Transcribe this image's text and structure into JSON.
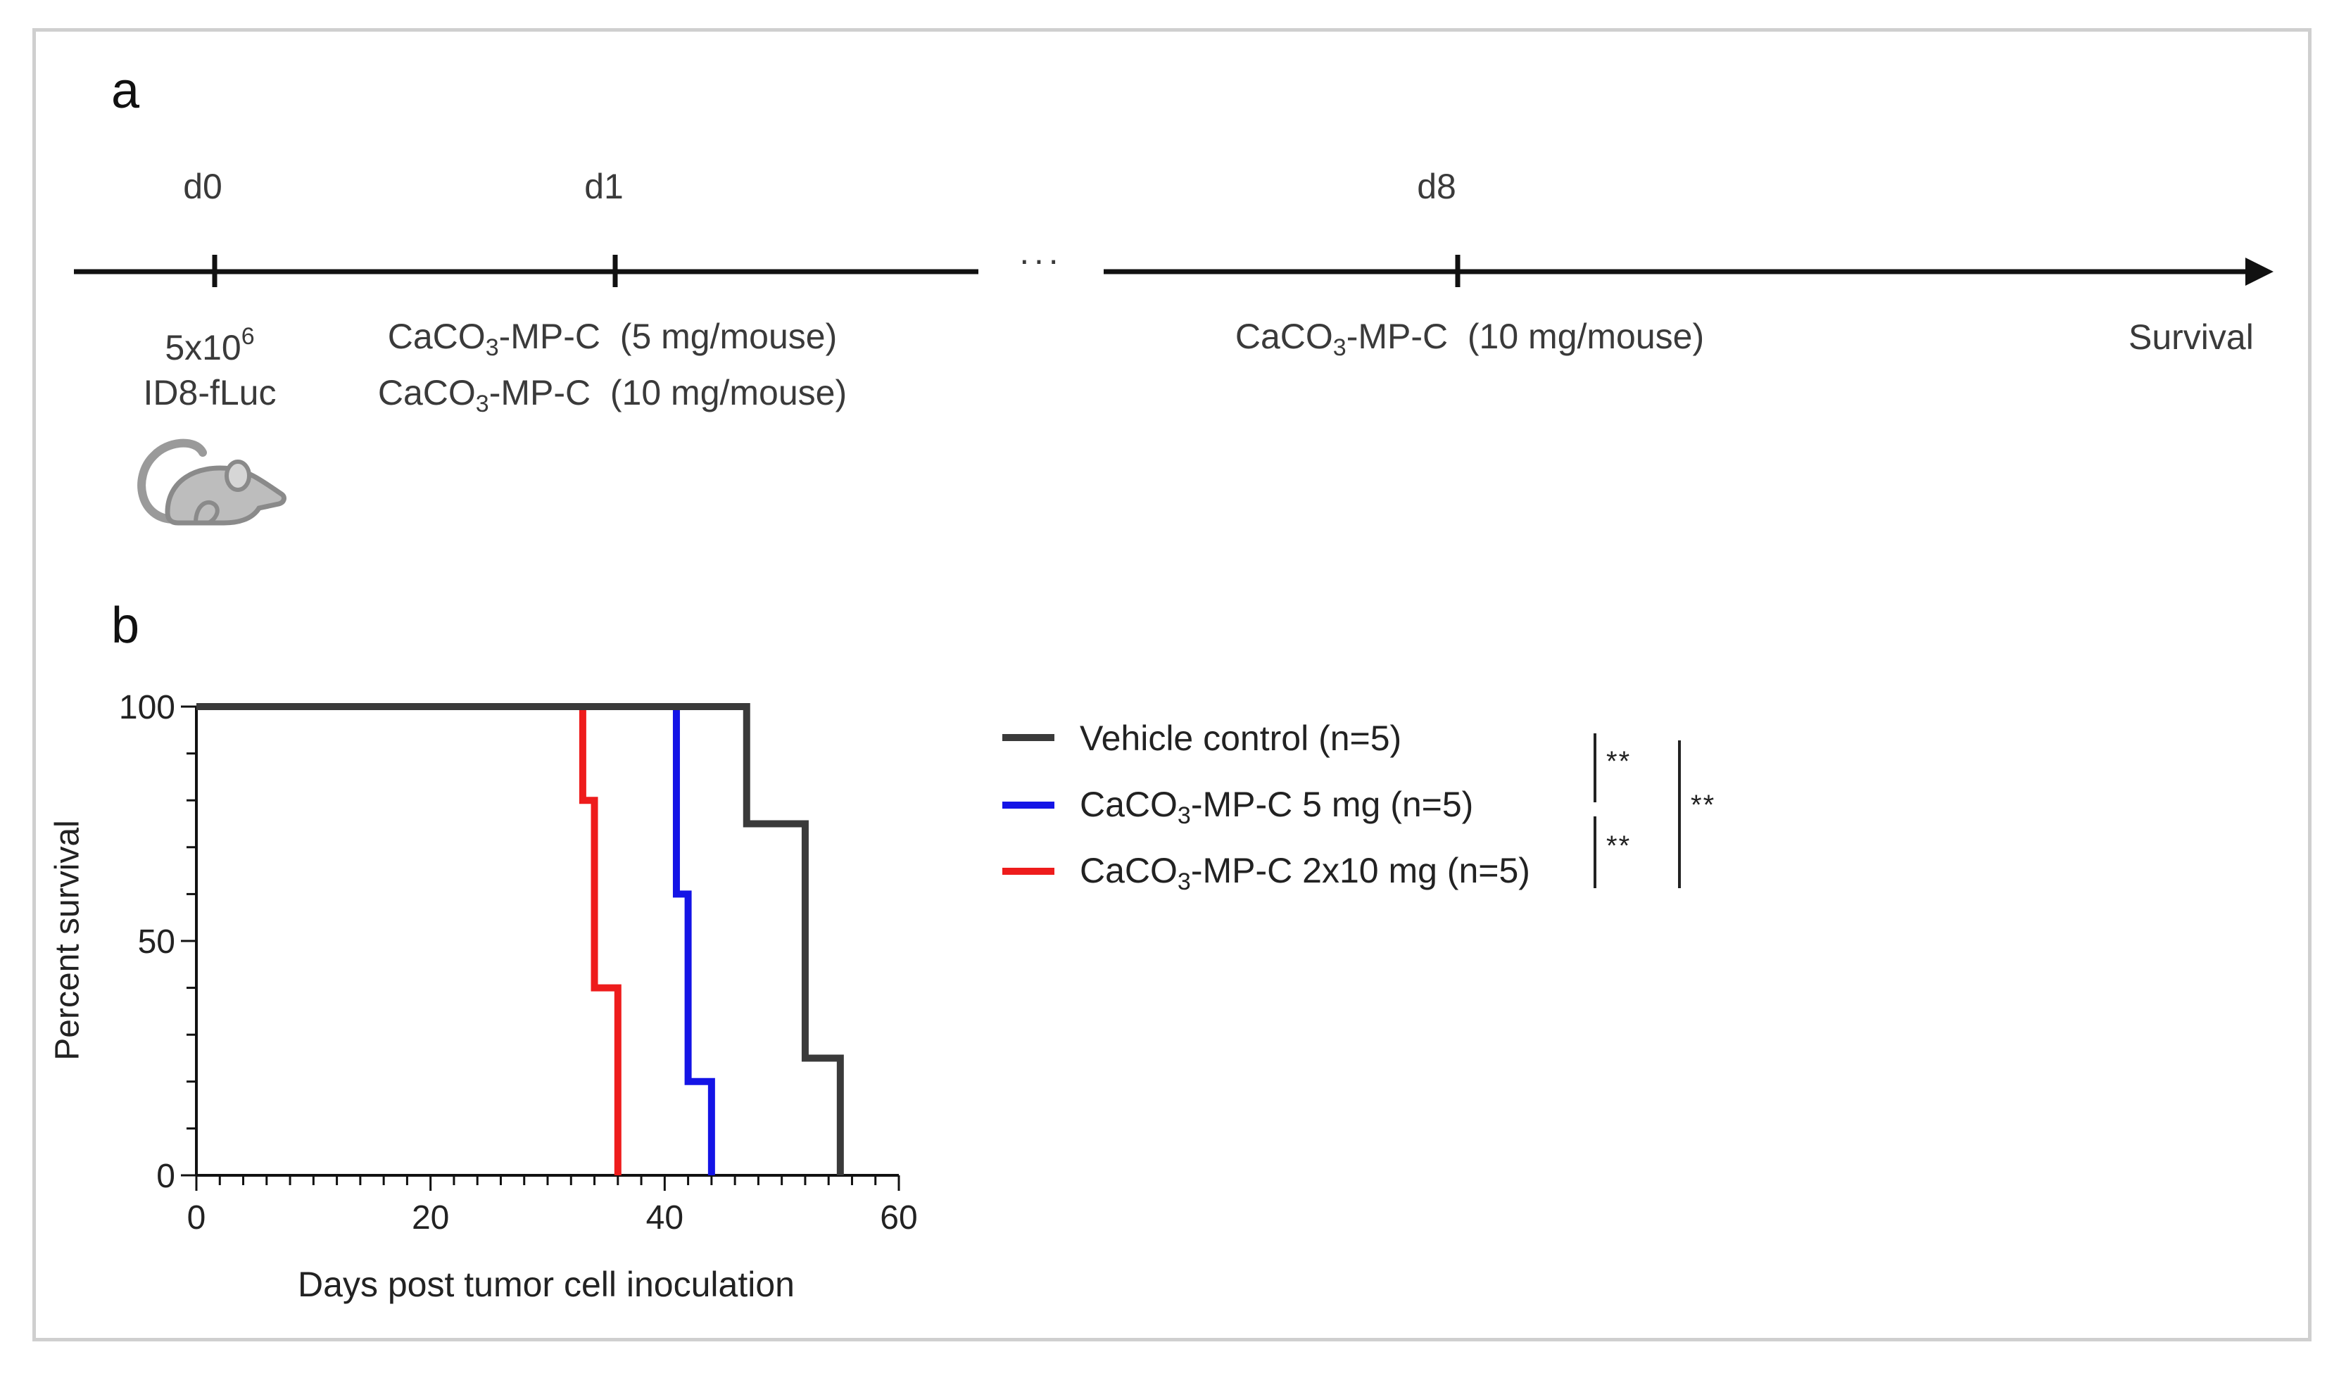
{
  "panel_a": {
    "letter": "a",
    "timepoints": [
      {
        "day": "d0",
        "below": [
          "5x10",
          "6",
          "ID8-fLuc"
        ]
      },
      {
        "day": "d1",
        "below_line1": [
          "CaCO",
          "3",
          "-MP-C  (5 mg/mouse)"
        ],
        "below_line2": [
          "CaCO",
          "3",
          "-MP-C  (10 mg/mouse)"
        ]
      },
      {
        "day": "d8",
        "below_line1": [
          "CaCO",
          "3",
          "-MP-C  (10 mg/mouse)"
        ]
      }
    ],
    "ellipsis": "···",
    "end_label": "Survival",
    "icon": "mouse-icon"
  },
  "panel_b": {
    "letter": "b",
    "legend": [
      {
        "label_pre": "Vehicle control (n=5)",
        "sub": "",
        "label_post": "",
        "color": "#3a3a3a"
      },
      {
        "label_pre": "CaCO",
        "sub": "3",
        "label_post": "-MP-C 5 mg (n=5)",
        "color": "#1414e6"
      },
      {
        "label_pre": "CaCO",
        "sub": "3",
        "label_post": "-MP-C 2x10 mg (n=5)",
        "color": "#ee1c1c"
      }
    ],
    "significance": {
      "pair1": "**",
      "pair2": "**",
      "outer": "**"
    }
  },
  "chart_data": {
    "type": "line",
    "subtype": "kaplan-meier step",
    "title": "",
    "xlabel": "Days post tumor cell inoculation",
    "ylabel": "Percent survival",
    "xlim": [
      0,
      60
    ],
    "ylim": [
      0,
      100
    ],
    "xticks": [
      0,
      20,
      40,
      60
    ],
    "yticks": [
      0,
      50,
      100
    ],
    "xtick_labels": [
      "0",
      "20",
      "40",
      "60"
    ],
    "ytick_labels": [
      "0",
      "50",
      "100"
    ],
    "series": [
      {
        "name": "Vehicle control (n=5)",
        "color": "#3a3a3a",
        "x": [
          0,
          47,
          47,
          52,
          52,
          55,
          55
        ],
        "y": [
          100,
          100,
          75,
          75,
          25,
          25,
          0
        ]
      },
      {
        "name": "CaCO3-MP-C 5 mg (n=5)",
        "color": "#1414e6",
        "x": [
          0,
          41,
          41,
          42,
          42,
          44,
          44
        ],
        "y": [
          100,
          100,
          60,
          60,
          20,
          20,
          0
        ]
      },
      {
        "name": "CaCO3-MP-C 2x10 mg (n=5)",
        "color": "#ee1c1c",
        "x": [
          0,
          33,
          33,
          34,
          34,
          36,
          36
        ],
        "y": [
          100,
          100,
          80,
          80,
          40,
          40,
          0
        ]
      }
    ]
  }
}
